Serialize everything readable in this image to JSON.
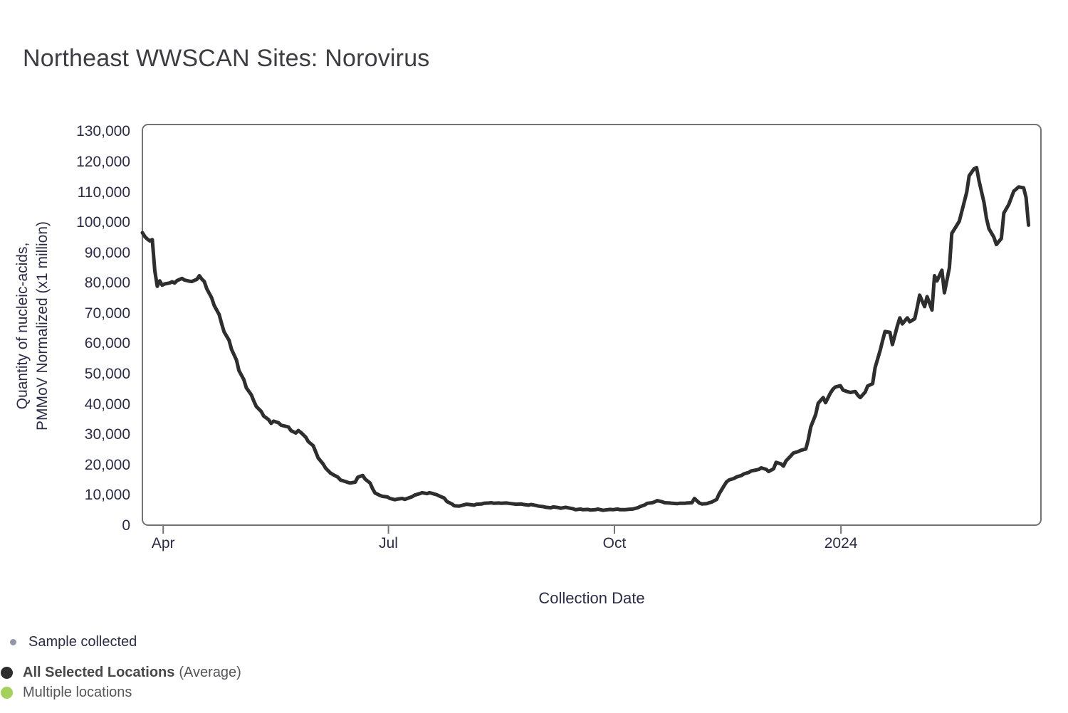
{
  "chart_data": {
    "type": "line",
    "title": "Northeast WWSCAN Sites: Norovirus",
    "xlabel": "Collection Date",
    "ylabel_line1": "Quantity of nucleic-acids,",
    "ylabel_line2": "PMMoV Normalized (x1 million)",
    "grid": false,
    "legend_position": "bottom-left",
    "ylim": [
      0,
      132200
    ],
    "y_ticks": [
      {
        "value": 0,
        "label": "0"
      },
      {
        "value": 10000,
        "label": "10,000"
      },
      {
        "value": 20000,
        "label": "20,000"
      },
      {
        "value": 30000,
        "label": "30,000"
      },
      {
        "value": 40000,
        "label": "40,000"
      },
      {
        "value": 50000,
        "label": "50,000"
      },
      {
        "value": 60000,
        "label": "60,000"
      },
      {
        "value": 70000,
        "label": "70,000"
      },
      {
        "value": 80000,
        "label": "80,000"
      },
      {
        "value": 90000,
        "label": "90,000"
      },
      {
        "value": 100000,
        "label": "100,000"
      },
      {
        "value": 110000,
        "label": "110,000"
      },
      {
        "value": 120000,
        "label": "120,000"
      },
      {
        "value": 130000,
        "label": "130,000"
      }
    ],
    "x_unit": "day_index_along_axis",
    "x_range_days": [
      0,
      363
    ],
    "x_ticks": [
      {
        "day": 8.4,
        "label": "Apr"
      },
      {
        "day": 99.4,
        "label": "Jul"
      },
      {
        "day": 190.7,
        "label": "Oct"
      },
      {
        "day": 282.2,
        "label": "2024"
      }
    ],
    "series": [
      {
        "name": "All Selected Locations (Average)",
        "color": "#2e2e2e",
        "points": [
          [
            0,
            96500
          ],
          [
            1,
            95200
          ],
          [
            2,
            94400
          ],
          [
            3,
            93800
          ],
          [
            4,
            94200
          ],
          [
            5,
            84000
          ],
          [
            6,
            78800
          ],
          [
            7,
            80600
          ],
          [
            8,
            79200
          ],
          [
            9,
            79600
          ],
          [
            11,
            79900
          ],
          [
            12,
            80300
          ],
          [
            13,
            79900
          ],
          [
            14,
            80700
          ],
          [
            16,
            81400
          ],
          [
            17,
            80900
          ],
          [
            19,
            80500
          ],
          [
            20,
            80400
          ],
          [
            22,
            81100
          ],
          [
            23,
            82300
          ],
          [
            24,
            81200
          ],
          [
            25,
            80400
          ],
          [
            26,
            78000
          ],
          [
            28,
            75000
          ],
          [
            29,
            72500
          ],
          [
            31,
            69500
          ],
          [
            32,
            66500
          ],
          [
            33,
            63800
          ],
          [
            35,
            61000
          ],
          [
            36,
            58000
          ],
          [
            38,
            54500
          ],
          [
            39,
            51000
          ],
          [
            41,
            48000
          ],
          [
            42,
            45300
          ],
          [
            44,
            43000
          ],
          [
            45,
            41000
          ],
          [
            46,
            39200
          ],
          [
            48,
            37500
          ],
          [
            49,
            36000
          ],
          [
            51,
            34800
          ],
          [
            52,
            33600
          ],
          [
            53,
            34300
          ],
          [
            55,
            33800
          ],
          [
            56,
            33000
          ],
          [
            58,
            32600
          ],
          [
            59,
            32400
          ],
          [
            60,
            31200
          ],
          [
            62,
            30400
          ],
          [
            63,
            31200
          ],
          [
            64,
            30600
          ],
          [
            66,
            29000
          ],
          [
            67,
            27600
          ],
          [
            69,
            26200
          ],
          [
            70,
            24200
          ],
          [
            71,
            22200
          ],
          [
            73,
            20200
          ],
          [
            74,
            18800
          ],
          [
            76,
            17200
          ],
          [
            77,
            16700
          ],
          [
            79,
            15800
          ],
          [
            80,
            14900
          ],
          [
            82,
            14400
          ],
          [
            83,
            14100
          ],
          [
            84,
            13900
          ],
          [
            86,
            14200
          ],
          [
            87,
            15800
          ],
          [
            89,
            16400
          ],
          [
            90,
            15200
          ],
          [
            92,
            13900
          ],
          [
            93,
            12000
          ],
          [
            94,
            10600
          ],
          [
            96,
            9800
          ],
          [
            97,
            9500
          ],
          [
            99,
            9300
          ],
          [
            100,
            8800
          ],
          [
            102,
            8400
          ],
          [
            103,
            8600
          ],
          [
            105,
            8800
          ],
          [
            106,
            8500
          ],
          [
            107,
            8800
          ],
          [
            109,
            9400
          ],
          [
            110,
            9900
          ],
          [
            112,
            10400
          ],
          [
            113,
            10700
          ],
          [
            115,
            10400
          ],
          [
            116,
            10700
          ],
          [
            117,
            10500
          ],
          [
            119,
            10000
          ],
          [
            120,
            9600
          ],
          [
            122,
            8900
          ],
          [
            123,
            7800
          ],
          [
            125,
            7000
          ],
          [
            126,
            6400
          ],
          [
            128,
            6300
          ],
          [
            129,
            6500
          ],
          [
            131,
            6900
          ],
          [
            132,
            6800
          ],
          [
            134,
            6600
          ],
          [
            135,
            6900
          ],
          [
            137,
            7000
          ],
          [
            138,
            7200
          ],
          [
            140,
            7300
          ],
          [
            141,
            7400
          ],
          [
            142,
            7200
          ],
          [
            144,
            7300
          ],
          [
            145,
            7200
          ],
          [
            147,
            7300
          ],
          [
            148,
            7200
          ],
          [
            150,
            7000
          ],
          [
            151,
            6900
          ],
          [
            153,
            7000
          ],
          [
            154,
            6800
          ],
          [
            156,
            6600
          ],
          [
            157,
            6800
          ],
          [
            159,
            6500
          ],
          [
            160,
            6300
          ],
          [
            162,
            6100
          ],
          [
            163,
            5900
          ],
          [
            165,
            5700
          ],
          [
            166,
            6000
          ],
          [
            168,
            5800
          ],
          [
            169,
            5600
          ],
          [
            171,
            5900
          ],
          [
            172,
            5700
          ],
          [
            174,
            5400
          ],
          [
            175,
            5100
          ],
          [
            177,
            5300
          ],
          [
            178,
            5100
          ],
          [
            180,
            5200
          ],
          [
            181,
            5000
          ],
          [
            183,
            5100
          ],
          [
            184,
            5300
          ],
          [
            186,
            4900
          ],
          [
            187,
            5000
          ],
          [
            189,
            5200
          ],
          [
            190,
            5100
          ],
          [
            192,
            5300
          ],
          [
            193,
            5100
          ],
          [
            195,
            5100
          ],
          [
            196,
            5200
          ],
          [
            198,
            5300
          ],
          [
            199,
            5500
          ],
          [
            200,
            5700
          ],
          [
            201,
            6100
          ],
          [
            203,
            6700
          ],
          [
            204,
            7200
          ],
          [
            206,
            7400
          ],
          [
            207,
            7700
          ],
          [
            208,
            8100
          ],
          [
            210,
            7700
          ],
          [
            211,
            7400
          ],
          [
            213,
            7300
          ],
          [
            214,
            7200
          ],
          [
            216,
            7100
          ],
          [
            217,
            7200
          ],
          [
            219,
            7200
          ],
          [
            220,
            7300
          ],
          [
            222,
            7400
          ],
          [
            223,
            8800
          ],
          [
            225,
            7300
          ],
          [
            226,
            7000
          ],
          [
            228,
            7100
          ],
          [
            229,
            7400
          ],
          [
            230,
            7600
          ],
          [
            232,
            8500
          ],
          [
            233,
            10300
          ],
          [
            235,
            13000
          ],
          [
            236,
            14300
          ],
          [
            237,
            14900
          ],
          [
            239,
            15400
          ],
          [
            240,
            15900
          ],
          [
            242,
            16400
          ],
          [
            243,
            16900
          ],
          [
            245,
            17400
          ],
          [
            246,
            17900
          ],
          [
            248,
            18200
          ],
          [
            249,
            18400
          ],
          [
            250,
            18900
          ],
          [
            252,
            18400
          ],
          [
            253,
            17700
          ],
          [
            255,
            18600
          ],
          [
            256,
            20700
          ],
          [
            258,
            20200
          ],
          [
            259,
            19500
          ],
          [
            260,
            21200
          ],
          [
            262,
            22900
          ],
          [
            263,
            23800
          ],
          [
            265,
            24300
          ],
          [
            266,
            24700
          ],
          [
            268,
            25100
          ],
          [
            269,
            28200
          ],
          [
            270,
            32400
          ],
          [
            272,
            36500
          ],
          [
            273,
            40200
          ],
          [
            275,
            42100
          ],
          [
            276,
            40400
          ],
          [
            278,
            43700
          ],
          [
            279,
            44900
          ],
          [
            280,
            45600
          ],
          [
            282,
            46000
          ],
          [
            283,
            44600
          ],
          [
            285,
            44000
          ],
          [
            286,
            43800
          ],
          [
            288,
            44100
          ],
          [
            289,
            42900
          ],
          [
            290,
            42100
          ],
          [
            292,
            43900
          ],
          [
            293,
            45900
          ],
          [
            295,
            46700
          ],
          [
            296,
            52000
          ],
          [
            298,
            57500
          ],
          [
            299,
            60800
          ],
          [
            300,
            63900
          ],
          [
            302,
            63600
          ],
          [
            303,
            59600
          ],
          [
            305,
            65800
          ],
          [
            306,
            68400
          ],
          [
            307,
            66400
          ],
          [
            309,
            68400
          ],
          [
            310,
            67100
          ],
          [
            312,
            68100
          ],
          [
            313,
            71800
          ],
          [
            314,
            75900
          ],
          [
            316,
            72100
          ],
          [
            317,
            75400
          ],
          [
            319,
            71000
          ],
          [
            320,
            82300
          ],
          [
            321,
            80600
          ],
          [
            323,
            84100
          ],
          [
            324,
            76700
          ],
          [
            326,
            84900
          ],
          [
            327,
            96300
          ],
          [
            328,
            97600
          ],
          [
            330,
            100300
          ],
          [
            331,
            103400
          ],
          [
            333,
            109800
          ],
          [
            334,
            115300
          ],
          [
            336,
            117600
          ],
          [
            337,
            118000
          ],
          [
            338,
            113500
          ],
          [
            340,
            106500
          ],
          [
            341,
            101200
          ],
          [
            342,
            97800
          ],
          [
            344,
            95000
          ],
          [
            345,
            92600
          ],
          [
            347,
            94600
          ],
          [
            348,
            103000
          ],
          [
            350,
            105800
          ],
          [
            352,
            110200
          ],
          [
            354,
            111600
          ],
          [
            356,
            111300
          ],
          [
            357,
            108100
          ],
          [
            358,
            99000
          ]
        ]
      }
    ]
  },
  "legend": {
    "rows": [
      {
        "id": "sample-collected",
        "label": "Sample collected",
        "dot_color": "#9197a6"
      },
      {
        "id": "all-selected-locations",
        "label": "All Selected Locations",
        "suffix": "(Average)",
        "dot_color": "#2d2d2d"
      },
      {
        "id": "multiple-locations",
        "label": "Multiple locations",
        "dot_color": "#a6d05c"
      }
    ]
  },
  "colors": {
    "line": "#2e2e2e",
    "axis_border": "#747474",
    "axis_text": "#2b2c45",
    "title_text": "#3c3c42"
  }
}
